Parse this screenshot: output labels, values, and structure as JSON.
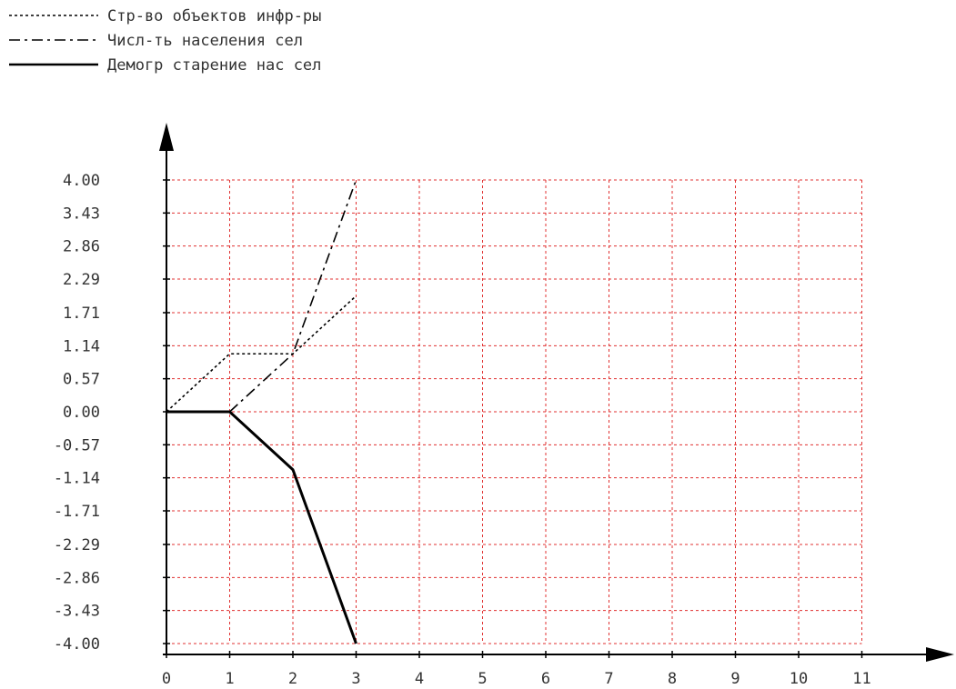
{
  "chart_data": {
    "type": "line",
    "xlim": [
      0,
      11
    ],
    "ylim": [
      -4.0,
      4.0
    ],
    "x_ticks": [
      "0",
      "1",
      "2",
      "3",
      "4",
      "5",
      "6",
      "7",
      "8",
      "9",
      "10",
      "11"
    ],
    "y_ticks": [
      "4.00",
      "3.43",
      "2.86",
      "2.29",
      "1.71",
      "1.14",
      "0.57",
      "0.00",
      "-0.57",
      "-1.14",
      "-1.71",
      "-2.29",
      "-2.86",
      "-3.43",
      "-4.00"
    ],
    "grid": true,
    "grid_color": "#e03030",
    "axis_color": "#000000",
    "legend_position": "top-left",
    "series": [
      {
        "name": "Стр-во объектов инфр-ры",
        "style": "dotted",
        "color": "#000000",
        "x": [
          0,
          1,
          2,
          3
        ],
        "y": [
          0.0,
          1.0,
          1.0,
          2.0
        ]
      },
      {
        "name": "Числ-ть населения сел",
        "style": "dashdot",
        "color": "#000000",
        "x": [
          1,
          2,
          3
        ],
        "y": [
          0.0,
          1.0,
          4.0
        ]
      },
      {
        "name": "Демогр старение нас сел",
        "style": "solid",
        "color": "#000000",
        "x": [
          0,
          1,
          1.6,
          2,
          3
        ],
        "y": [
          0.0,
          0.0,
          -0.6,
          -1.0,
          -4.0
        ]
      }
    ]
  }
}
